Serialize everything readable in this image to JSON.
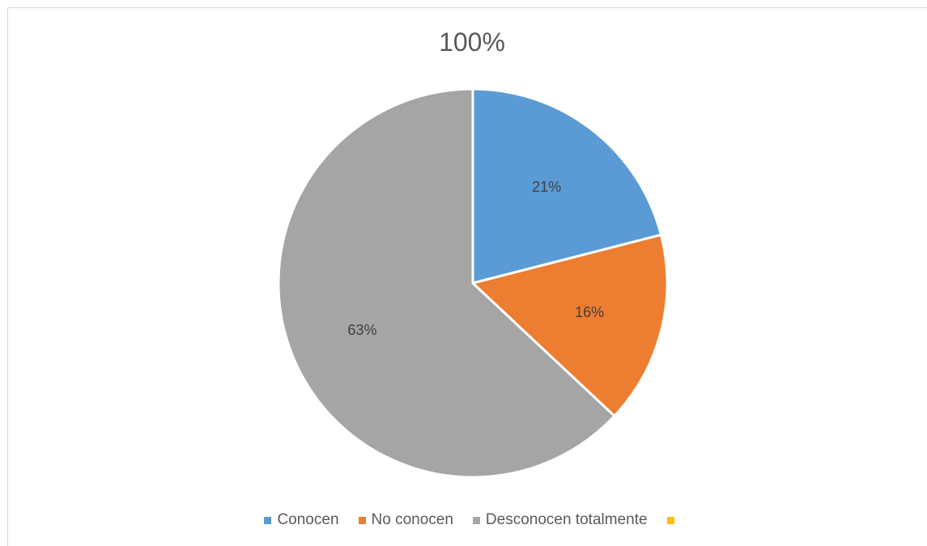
{
  "chart_data": {
    "type": "pie",
    "title": "100%",
    "categories": [
      "Conocen",
      "No conocen",
      "Desconocen totalmente",
      ""
    ],
    "values": [
      21,
      16,
      63,
      0
    ],
    "data_labels": [
      "21%",
      "16%",
      "63%",
      ""
    ],
    "colors": [
      "#5b9bd5",
      "#ed7d31",
      "#a5a5a5",
      "#ffc000"
    ],
    "legend_position": "bottom"
  }
}
